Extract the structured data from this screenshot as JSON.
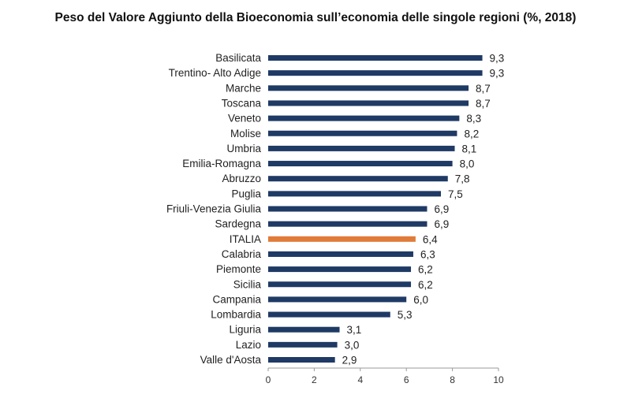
{
  "title": "Peso del Valore Aggiunto della Bioeconomia sull’economia delle singole regioni (%, 2018)",
  "chart_data": {
    "type": "bar",
    "orientation": "horizontal",
    "title": "Peso del Valore Aggiunto della Bioeconomia sull’economia delle singole regioni (%, 2018)",
    "xlabel": "",
    "ylabel": "",
    "xlim": [
      0,
      10
    ],
    "xticks": [
      "0",
      "2",
      "4",
      "6",
      "8",
      "10"
    ],
    "grid": false,
    "categories": [
      "Basilicata",
      "Trentino- Alto Adige",
      "Marche",
      "Toscana",
      "Veneto",
      "Molise",
      "Umbria",
      "Emilia-Romagna",
      "Abruzzo",
      "Puglia",
      "Friuli-Venezia Giulia",
      "Sardegna",
      "ITALIA",
      "Calabria",
      "Piemonte",
      "Sicilia",
      "Campania",
      "Lombardia",
      "Liguria",
      "Lazio",
      "Valle d'Aosta"
    ],
    "values": [
      9.3,
      9.3,
      8.7,
      8.7,
      8.3,
      8.2,
      8.1,
      8.0,
      7.8,
      7.5,
      6.9,
      6.9,
      6.4,
      6.3,
      6.2,
      6.2,
      6.0,
      5.3,
      3.1,
      3.0,
      2.9
    ],
    "value_labels": [
      "9,3",
      "9,3",
      "8,7",
      "8,7",
      "8,3",
      "8,2",
      "8,1",
      "8,0",
      "7,8",
      "7,5",
      "6,9",
      "6,9",
      "6,4",
      "6,3",
      "6,2",
      "6,2",
      "6,0",
      "5,3",
      "3,1",
      "3,0",
      "2,9"
    ],
    "highlight_category": "ITALIA",
    "colors": {
      "bar": "#1f3a64",
      "highlight": "#e07b39",
      "axis": "#9a9a9a"
    }
  }
}
